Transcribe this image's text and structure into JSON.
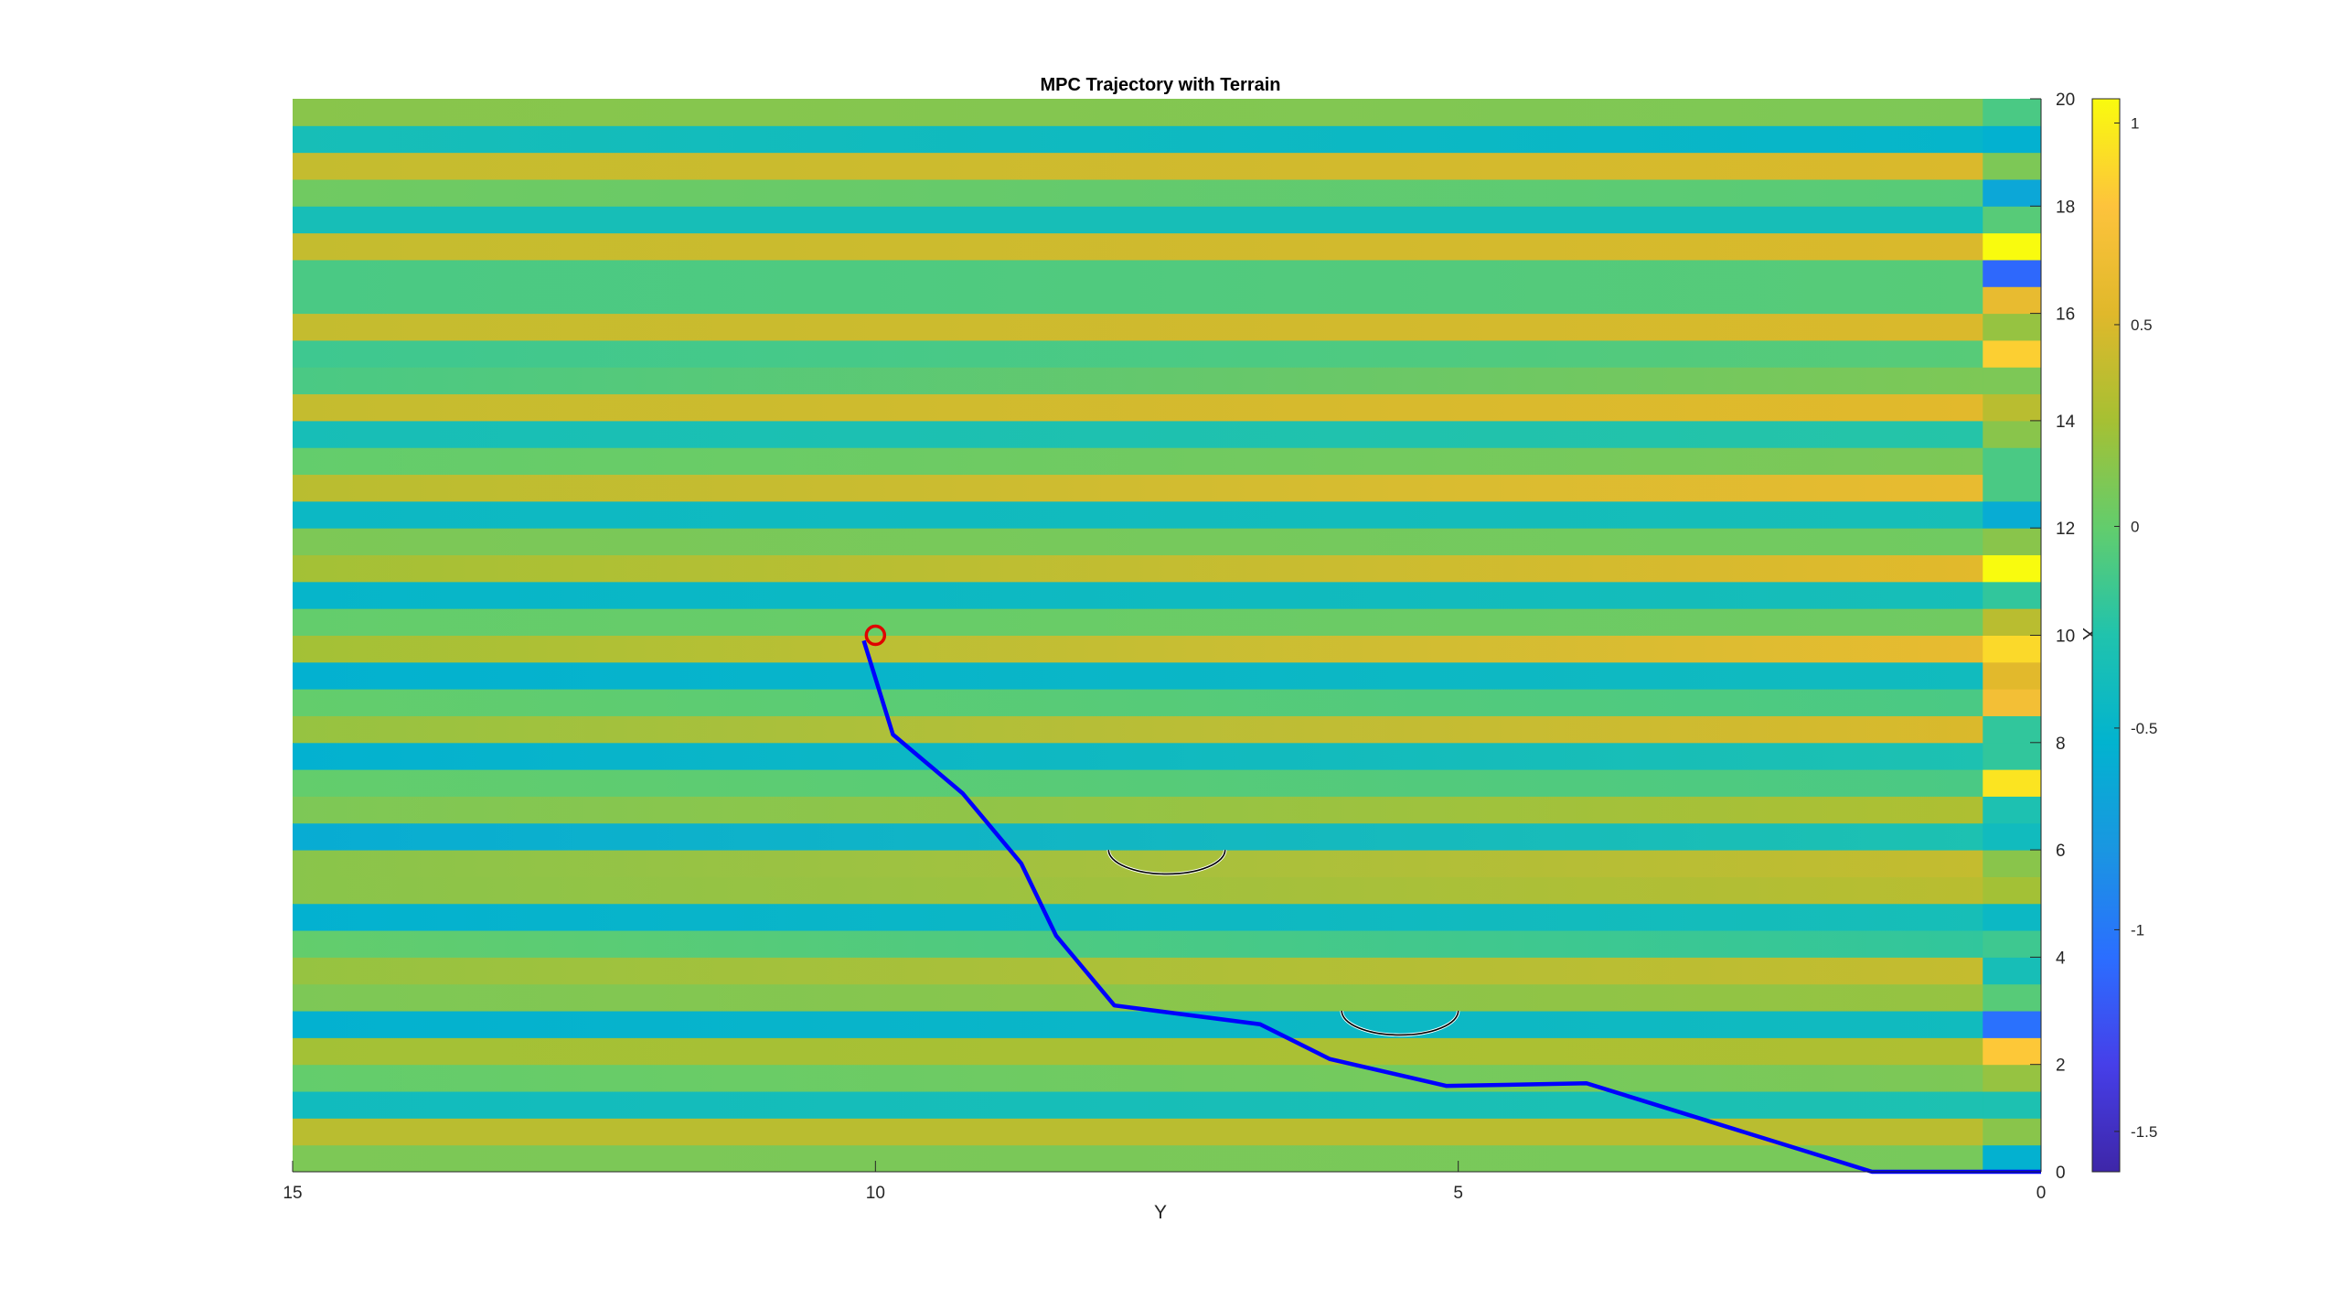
{
  "chart_data": {
    "type": "heatmap",
    "title": "MPC Trajectory with Terrain",
    "xlabel": "Y",
    "ylabel": "X",
    "xlim": [
      15,
      0
    ],
    "ylim": [
      0,
      20
    ],
    "x_ticks": [
      "15",
      "10",
      "5",
      "0"
    ],
    "y_ticks": [
      "0",
      "2",
      "4",
      "6",
      "8",
      "10",
      "12",
      "14",
      "16",
      "18",
      "20"
    ],
    "colorbar": {
      "clim": [
        -1.6,
        1.06
      ],
      "ticks": [
        -1.5,
        -1,
        -0.5,
        0,
        0.5,
        1
      ],
      "tick_labels": [
        "-1.5",
        "-1",
        "-0.5",
        "0",
        "0.5",
        "1"
      ],
      "colormap": "parula"
    },
    "terrain_rows": [
      {
        "x0": 0.0,
        "y_left": 0.1,
        "y_right": 0.08,
        "edge": -0.55
      },
      {
        "x0": 0.5,
        "y_left": 0.35,
        "y_right": 0.35,
        "edge": 0.15
      },
      {
        "x0": 1.0,
        "y_left": -0.4,
        "y_right": -0.3,
        "edge": -0.3
      },
      {
        "x0": 1.5,
        "y_left": 0.0,
        "y_right": 0.1,
        "edge": 0.2
      },
      {
        "x0": 2.0,
        "y_left": 0.25,
        "y_right": 0.3,
        "edge": 0.82
      },
      {
        "x0": 2.5,
        "y_left": -0.55,
        "y_right": -0.4,
        "edge": -1.05
      },
      {
        "x0": 3.0,
        "y_left": 0.1,
        "y_right": 0.2,
        "edge": -0.05
      },
      {
        "x0": 3.5,
        "y_left": 0.2,
        "y_right": 0.4,
        "edge": -0.35
      },
      {
        "x0": 4.0,
        "y_left": 0.0,
        "y_right": -0.2,
        "edge": -0.15
      },
      {
        "x0": 4.5,
        "y_left": -0.55,
        "y_right": -0.35,
        "edge": -0.45
      },
      {
        "x0": 5.0,
        "y_left": 0.15,
        "y_right": 0.35,
        "edge": 0.25
      },
      {
        "x0": 5.5,
        "y_left": 0.15,
        "y_right": 0.4,
        "edge": 0.15
      },
      {
        "x0": 6.0,
        "y_left": -0.6,
        "y_right": -0.3,
        "edge": -0.4
      },
      {
        "x0": 6.5,
        "y_left": 0.1,
        "y_right": 0.3,
        "edge": -0.3
      },
      {
        "x0": 7.0,
        "y_left": 0.0,
        "y_right": -0.1,
        "edge": 0.95
      },
      {
        "x0": 7.5,
        "y_left": -0.55,
        "y_right": -0.3,
        "edge": -0.2
      },
      {
        "x0": 8.0,
        "y_left": 0.2,
        "y_right": 0.5,
        "edge": -0.2
      },
      {
        "x0": 8.5,
        "y_left": 0.0,
        "y_right": -0.1,
        "edge": 0.7
      },
      {
        "x0": 9.0,
        "y_left": -0.55,
        "y_right": -0.4,
        "edge": 0.55
      },
      {
        "x0": 9.5,
        "y_left": 0.25,
        "y_right": 0.6,
        "edge": 0.9
      },
      {
        "x0": 10.0,
        "y_left": 0.0,
        "y_right": 0.05,
        "edge": 0.35
      },
      {
        "x0": 10.5,
        "y_left": -0.5,
        "y_right": -0.35,
        "edge": -0.2
      },
      {
        "x0": 11.0,
        "y_left": 0.25,
        "y_right": 0.55,
        "edge": 1.06
      },
      {
        "x0": 11.5,
        "y_left": 0.1,
        "y_right": 0.05,
        "edge": 0.15
      },
      {
        "x0": 12.0,
        "y_left": -0.45,
        "y_right": -0.35,
        "edge": -0.6
      },
      {
        "x0": 12.5,
        "y_left": 0.35,
        "y_right": 0.6,
        "edge": -0.1
      },
      {
        "x0": 13.0,
        "y_left": 0.0,
        "y_right": 0.1,
        "edge": -0.1
      },
      {
        "x0": 13.5,
        "y_left": -0.35,
        "y_right": -0.25,
        "edge": 0.15
      },
      {
        "x0": 14.0,
        "y_left": 0.4,
        "y_right": 0.55,
        "edge": 0.35
      },
      {
        "x0": 14.5,
        "y_left": -0.1,
        "y_right": 0.1,
        "edge": 0.1
      },
      {
        "x0": 15.0,
        "y_left": -0.15,
        "y_right": -0.05,
        "edge": 0.85
      },
      {
        "x0": 15.5,
        "y_left": 0.4,
        "y_right": 0.5,
        "edge": 0.2
      },
      {
        "x0": 16.0,
        "y_left": -0.1,
        "y_right": -0.05,
        "edge": 0.6
      },
      {
        "x0": 16.5,
        "y_left": -0.1,
        "y_right": -0.05,
        "edge": -1.1
      },
      {
        "x0": 17.0,
        "y_left": 0.4,
        "y_right": 0.5,
        "edge": 1.06
      },
      {
        "x0": 17.5,
        "y_left": -0.35,
        "y_right": -0.35,
        "edge": -0.05
      },
      {
        "x0": 18.0,
        "y_left": 0.05,
        "y_right": -0.05,
        "edge": -0.65
      },
      {
        "x0": 18.5,
        "y_left": 0.4,
        "y_right": 0.5,
        "edge": 0.1
      },
      {
        "x0": 19.0,
        "y_left": -0.35,
        "y_right": -0.5,
        "edge": -0.55
      },
      {
        "x0": 19.5,
        "y_left": 0.15,
        "y_right": 0.1,
        "edge": -0.1
      }
    ],
    "terrain_edge_column": {
      "y_from": 0.0,
      "y_to": 0.5
    },
    "trajectory": {
      "color": "#0000ff",
      "points": [
        {
          "y": 10.1,
          "x": 9.9
        },
        {
          "y": 9.85,
          "x": 8.15
        },
        {
          "y": 9.25,
          "x": 7.05
        },
        {
          "y": 8.75,
          "x": 5.75
        },
        {
          "y": 8.45,
          "x": 4.4
        },
        {
          "y": 7.95,
          "x": 3.1
        },
        {
          "y": 6.7,
          "x": 2.75
        },
        {
          "y": 6.1,
          "x": 2.1
        },
        {
          "y": 5.1,
          "x": 1.6
        },
        {
          "y": 3.9,
          "x": 1.65
        },
        {
          "y": 1.45,
          "x": 0.0
        },
        {
          "y": 0.0,
          "x": 0.0
        }
      ]
    },
    "start_marker": {
      "y": 10.0,
      "x": 10.0,
      "color": "#e00000"
    },
    "obstacles": [
      {
        "y": 7.5,
        "x": 6.0,
        "radius_y": 0.5,
        "radius_x": 0.45
      },
      {
        "y": 5.5,
        "x": 3.0,
        "radius_y": 0.5,
        "radius_x": 0.45
      }
    ]
  }
}
